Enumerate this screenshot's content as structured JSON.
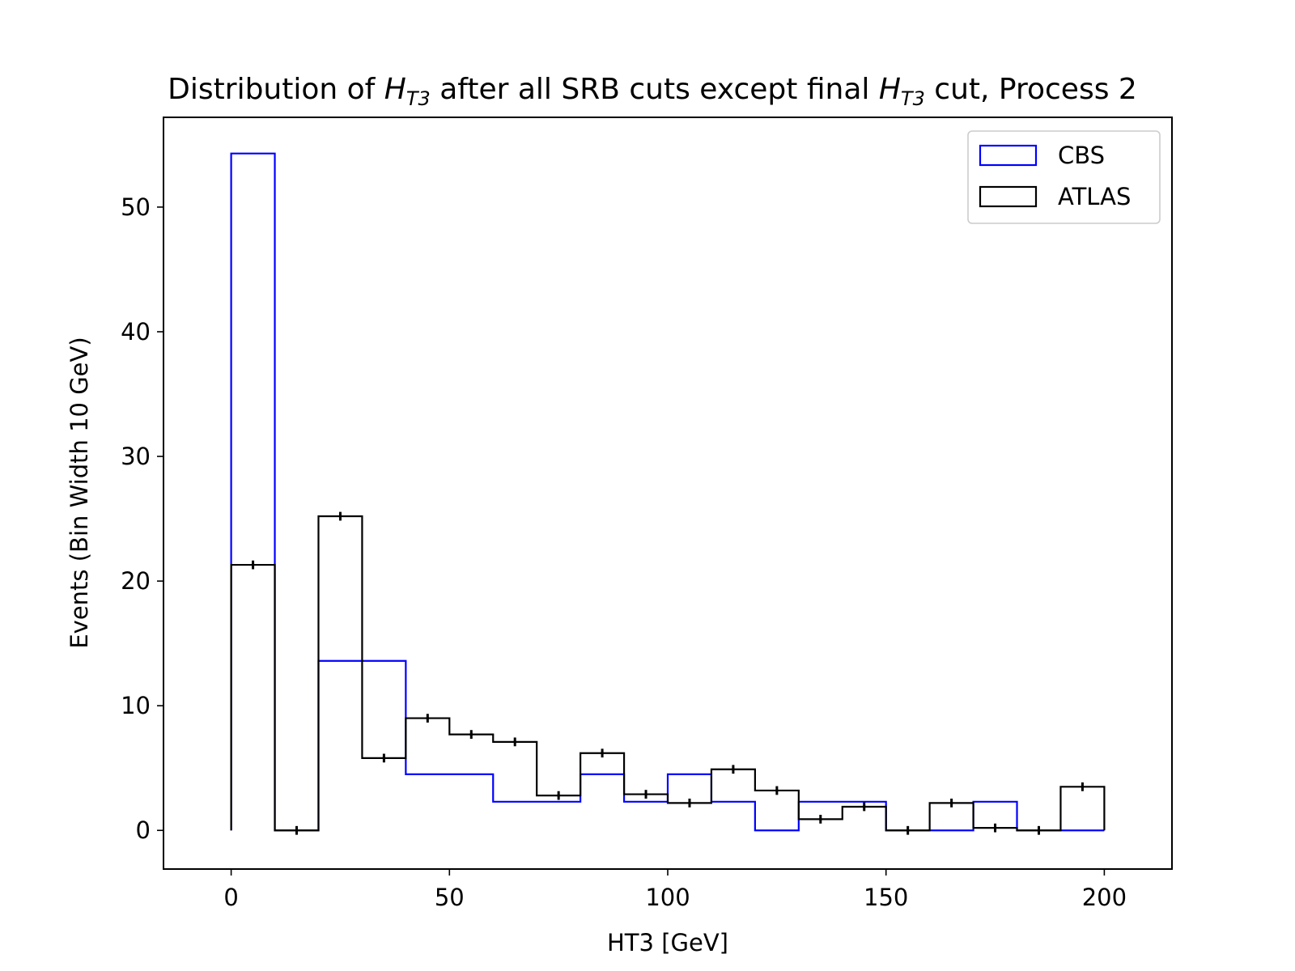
{
  "chart_data": {
    "type": "histogram-step",
    "title_parts": [
      {
        "text": "Distribution of ",
        "italic": false
      },
      {
        "text": "H",
        "italic": true
      },
      {
        "text": "T3",
        "italic": true,
        "sub": true
      },
      {
        "text": " after all SRB cuts except final ",
        "italic": false
      },
      {
        "text": "H",
        "italic": true
      },
      {
        "text": "T3",
        "italic": true,
        "sub": true
      },
      {
        "text": " cut, Process 2",
        "italic": false
      }
    ],
    "xlabel": "HT3 [GeV]",
    "ylabel": "Events (Bin Width 10 GeV)",
    "xlim": [
      -15.5,
      215.5
    ],
    "ylim": [
      -3.1,
      57.2
    ],
    "xticks": [
      0,
      50,
      100,
      150,
      200
    ],
    "yticks": [
      0,
      10,
      20,
      30,
      40,
      50
    ],
    "bin_edges": [
      0,
      10,
      20,
      30,
      40,
      50,
      60,
      70,
      80,
      90,
      100,
      110,
      120,
      130,
      140,
      150,
      160,
      170,
      180,
      190,
      200
    ],
    "legend_position": "upper right",
    "series": [
      {
        "name": "CBS",
        "color": "#0000ff",
        "values": [
          54.3,
          0,
          13.6,
          13.6,
          4.5,
          4.5,
          2.3,
          2.3,
          4.5,
          2.3,
          4.5,
          2.3,
          0,
          2.3,
          2.3,
          0,
          0,
          2.3,
          0,
          0
        ]
      },
      {
        "name": "ATLAS",
        "color": "#000000",
        "values": [
          21.3,
          0,
          25.2,
          5.8,
          9.0,
          7.7,
          7.1,
          2.8,
          6.2,
          2.9,
          2.2,
          4.9,
          3.2,
          0.9,
          1.9,
          0,
          2.2,
          0.2,
          0,
          3.5
        ],
        "errors": [
          0.35,
          0.35,
          0.35,
          0.35,
          0.35,
          0.35,
          0.35,
          0.35,
          0.35,
          0.35,
          0.35,
          0.35,
          0.35,
          0.35,
          0.35,
          0.35,
          0.35,
          0.35,
          0.35,
          0.35
        ]
      }
    ]
  }
}
